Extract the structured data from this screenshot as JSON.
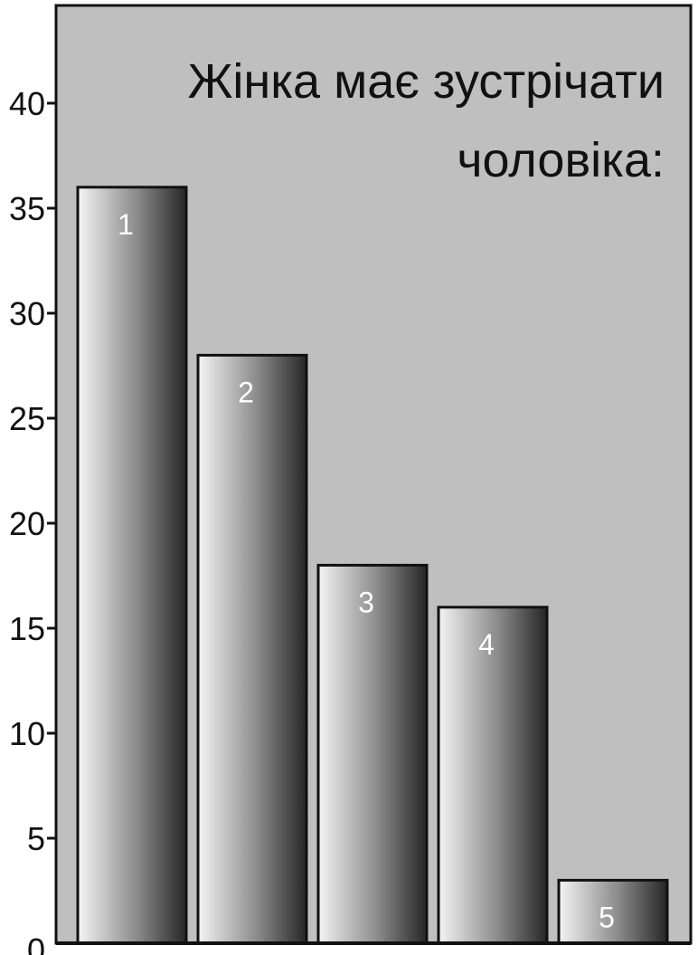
{
  "chart_data": {
    "type": "bar",
    "title_lines": [
      "Жінка має зустрічати",
      "чоловіка:"
    ],
    "categories": [
      "1",
      "2",
      "3",
      "4",
      "5"
    ],
    "values": [
      36,
      28,
      18,
      16,
      3
    ],
    "ylim": [
      0,
      45
    ],
    "yticks": [
      0,
      5,
      10,
      15,
      20,
      25,
      30,
      35,
      40
    ],
    "xlabel": "",
    "ylabel": "",
    "grid": false,
    "colors": {
      "plot_background": "#bfbfbf",
      "bar_light": "#f4f4f4",
      "bar_mid": "#8a8a8a",
      "bar_dark": "#262626",
      "axis": "#111111"
    }
  }
}
